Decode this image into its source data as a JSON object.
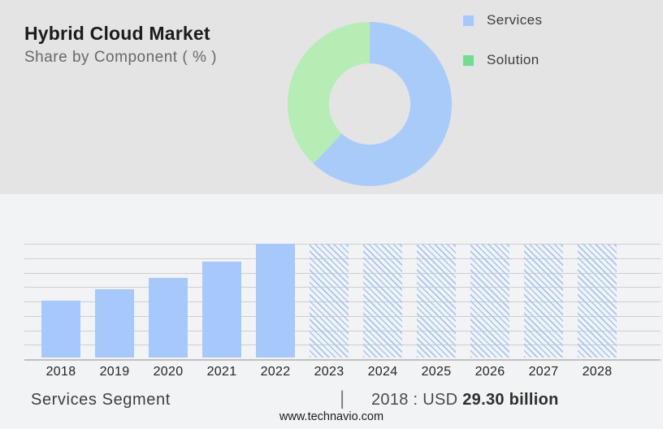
{
  "header": {
    "title": "Hybrid Cloud Market",
    "subtitle": "Share by Component ( % )"
  },
  "legend": {
    "items": [
      {
        "label": "Services",
        "color": "#a6c8fa"
      },
      {
        "label": "Solution",
        "color": "#72dc90"
      }
    ]
  },
  "chart_data": [
    {
      "type": "pie",
      "subtype": "donut",
      "title": "Hybrid Cloud Market - Share by Component ( % )",
      "labels": [
        "Services",
        "Solution"
      ],
      "values_pct": [
        62,
        38
      ],
      "colors": [
        "#a9cbfa",
        "#b6edb5"
      ],
      "start_angle_deg": 0,
      "direction": "clockwise",
      "legend_position": "right"
    },
    {
      "type": "bar",
      "title": "Services Segment size by year",
      "categories": [
        "2018",
        "2019",
        "2020",
        "2021",
        "2022",
        "2023",
        "2024",
        "2025",
        "2026",
        "2027",
        "2028"
      ],
      "values_pct_of_max": [
        50,
        60,
        70,
        84,
        100,
        100,
        100,
        100,
        100,
        100,
        100
      ],
      "historical_years": [
        "2018",
        "2019",
        "2020",
        "2021",
        "2022"
      ],
      "forecast_years_hatched": [
        "2023",
        "2024",
        "2025",
        "2026",
        "2027",
        "2028"
      ],
      "bar_color": "#a6c8fa",
      "hatch_line_color": "#a4c5f2",
      "grid": true,
      "n_grid_intervals": 8,
      "annotation": "2018 : USD 29.30 billion",
      "xlabel": "",
      "ylabel": ""
    }
  ],
  "footer": {
    "segment_label": "Services Segment",
    "separator": "|",
    "value_prefix": "2018 : USD ",
    "value_bold": "29.30 billion",
    "website": "www.technavio.com"
  }
}
